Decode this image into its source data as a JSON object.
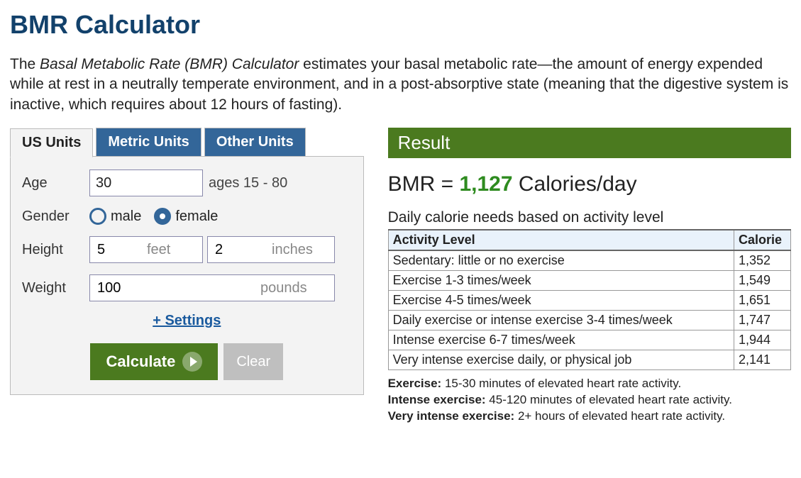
{
  "title": "BMR Calculator",
  "intro": {
    "lead_italic": "Basal Metabolic Rate (BMR) Calculator",
    "prefix": "The ",
    "rest": " estimates your basal metabolic rate—the amount of energy expended while at rest in a neutrally temperate environment, and in a post-absorptive state (meaning that the digestive system is inactive, which requires about 12 hours of fasting)."
  },
  "tabs": {
    "us": "US Units",
    "metric": "Metric Units",
    "other": "Other Units",
    "active": "us"
  },
  "form": {
    "age": {
      "label": "Age",
      "value": "30",
      "hint": "ages 15 - 80"
    },
    "gender": {
      "label": "Gender",
      "male": "male",
      "female": "female",
      "selected": "female"
    },
    "height": {
      "label": "Height",
      "feet_value": "5",
      "feet_suffix": "feet",
      "inches_value": "2",
      "inches_suffix": "inches"
    },
    "weight": {
      "label": "Weight",
      "value": "100",
      "suffix": "pounds"
    },
    "settings_link": "+ Settings",
    "calculate": "Calculate",
    "clear": "Clear"
  },
  "result": {
    "heading": "Result",
    "bmr_label": "BMR = ",
    "bmr_value": "1,127",
    "bmr_unit": " Calories/day",
    "table_caption": "Daily calorie needs based on activity level",
    "col_activity": "Activity Level",
    "col_calorie": "Calorie",
    "rows": [
      {
        "activity": "Sedentary: little or no exercise",
        "cal": "1,352"
      },
      {
        "activity": "Exercise 1-3 times/week",
        "cal": "1,549"
      },
      {
        "activity": "Exercise 4-5 times/week",
        "cal": "1,651"
      },
      {
        "activity": "Daily exercise or intense exercise 3-4 times/week",
        "cal": "1,747"
      },
      {
        "activity": "Intense exercise 6-7 times/week",
        "cal": "1,944"
      },
      {
        "activity": "Very intense exercise daily, or physical job",
        "cal": "2,141"
      }
    ],
    "defs": {
      "exercise_label": "Exercise:",
      "exercise_text": " 15-30 minutes of elevated heart rate activity.",
      "intense_label": "Intense exercise:",
      "intense_text": " 45-120 minutes of elevated heart rate activity.",
      "very_label": "Very intense exercise:",
      "very_text": " 2+ hours of elevated heart rate activity."
    }
  },
  "colors": {
    "brand_blue": "#336699",
    "heading_blue": "#12416b",
    "green": "#4b7a1f",
    "value_green": "#2e8b1f",
    "panel_bg": "#f3f3f3",
    "table_header_bg": "#e9f2fb"
  }
}
